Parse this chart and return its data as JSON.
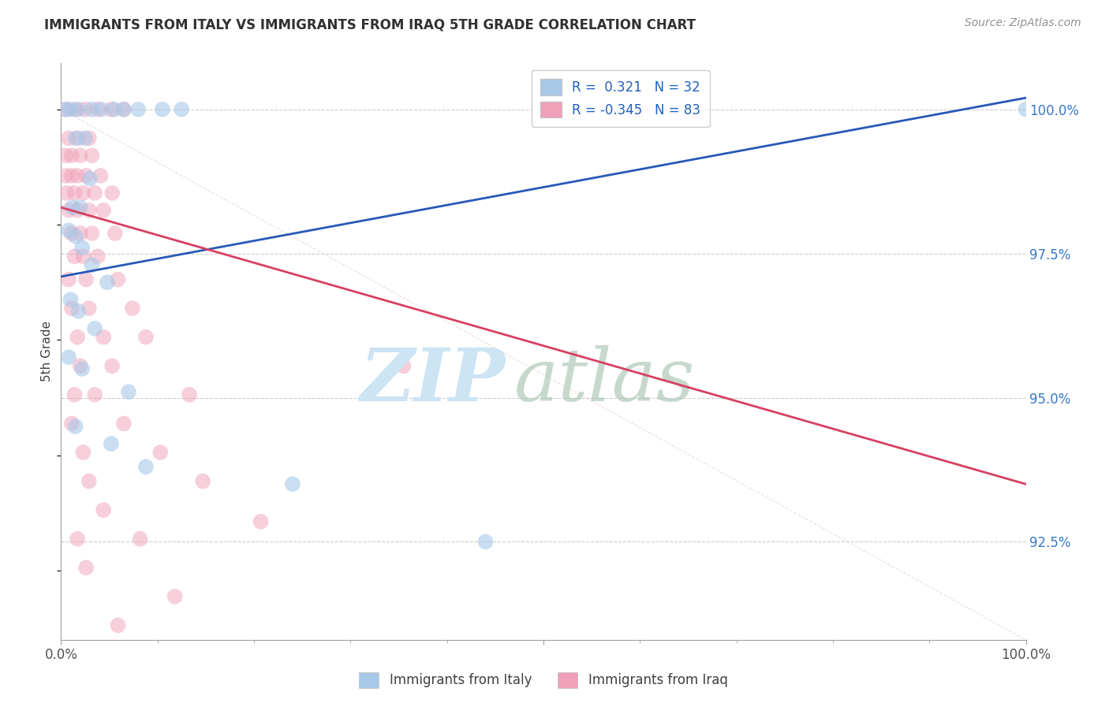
{
  "title": "IMMIGRANTS FROM ITALY VS IMMIGRANTS FROM IRAQ 5TH GRADE CORRELATION CHART",
  "source": "Source: ZipAtlas.com",
  "ylabel": "5th Grade",
  "yticks": [
    92.5,
    95.0,
    97.5,
    100.0
  ],
  "ytick_labels": [
    "92.5%",
    "95.0%",
    "97.5%",
    "100.0%"
  ],
  "ylim": [
    90.8,
    100.8
  ],
  "xlim": [
    0.0,
    100.0
  ],
  "italy_color": "#a8c8e8",
  "iraq_color": "#f0a0b8",
  "italy_line_color": "#2858b8",
  "iraq_line_color": "#d84060",
  "italy_trend_x": [
    0,
    100
  ],
  "italy_trend_y": [
    97.1,
    100.2
  ],
  "iraq_trend_x": [
    0,
    100
  ],
  "iraq_trend_y": [
    98.3,
    93.5
  ],
  "diag_line_x": [
    0,
    100
  ],
  "diag_line_y": [
    100.0,
    90.8
  ],
  "italy_points": [
    [
      0.5,
      100.0
    ],
    [
      1.0,
      100.0
    ],
    [
      1.8,
      100.0
    ],
    [
      3.2,
      100.0
    ],
    [
      4.2,
      100.0
    ],
    [
      5.5,
      100.0
    ],
    [
      6.5,
      100.0
    ],
    [
      8.0,
      100.0
    ],
    [
      10.5,
      100.0
    ],
    [
      12.5,
      100.0
    ],
    [
      1.5,
      99.5
    ],
    [
      2.5,
      99.5
    ],
    [
      3.0,
      98.8
    ],
    [
      1.2,
      98.3
    ],
    [
      2.0,
      98.3
    ],
    [
      0.8,
      97.9
    ],
    [
      1.5,
      97.8
    ],
    [
      2.2,
      97.6
    ],
    [
      3.2,
      97.3
    ],
    [
      4.8,
      97.0
    ],
    [
      1.0,
      96.7
    ],
    [
      1.8,
      96.5
    ],
    [
      3.5,
      96.2
    ],
    [
      0.8,
      95.7
    ],
    [
      2.2,
      95.5
    ],
    [
      7.0,
      95.1
    ],
    [
      1.5,
      94.5
    ],
    [
      5.2,
      94.2
    ],
    [
      8.8,
      93.8
    ],
    [
      24.0,
      93.5
    ],
    [
      44.0,
      92.5
    ],
    [
      100.0,
      100.0
    ]
  ],
  "iraq_points": [
    [
      0.5,
      100.0
    ],
    [
      1.5,
      100.0
    ],
    [
      2.5,
      100.0
    ],
    [
      3.8,
      100.0
    ],
    [
      5.2,
      100.0
    ],
    [
      6.5,
      100.0
    ],
    [
      0.8,
      99.5
    ],
    [
      1.8,
      99.5
    ],
    [
      2.9,
      99.5
    ],
    [
      0.5,
      99.2
    ],
    [
      1.1,
      99.2
    ],
    [
      2.0,
      99.2
    ],
    [
      3.2,
      99.2
    ],
    [
      0.5,
      98.85
    ],
    [
      1.1,
      98.85
    ],
    [
      1.7,
      98.85
    ],
    [
      2.6,
      98.85
    ],
    [
      4.1,
      98.85
    ],
    [
      0.6,
      98.55
    ],
    [
      1.4,
      98.55
    ],
    [
      2.3,
      98.55
    ],
    [
      3.5,
      98.55
    ],
    [
      5.3,
      98.55
    ],
    [
      0.8,
      98.25
    ],
    [
      1.7,
      98.25
    ],
    [
      2.9,
      98.25
    ],
    [
      4.4,
      98.25
    ],
    [
      1.1,
      97.85
    ],
    [
      2.0,
      97.85
    ],
    [
      3.2,
      97.85
    ],
    [
      5.6,
      97.85
    ],
    [
      1.4,
      97.45
    ],
    [
      2.3,
      97.45
    ],
    [
      3.8,
      97.45
    ],
    [
      0.8,
      97.05
    ],
    [
      2.6,
      97.05
    ],
    [
      5.9,
      97.05
    ],
    [
      1.1,
      96.55
    ],
    [
      2.9,
      96.55
    ],
    [
      7.4,
      96.55
    ],
    [
      1.7,
      96.05
    ],
    [
      4.4,
      96.05
    ],
    [
      8.8,
      96.05
    ],
    [
      2.0,
      95.55
    ],
    [
      5.3,
      95.55
    ],
    [
      1.4,
      95.05
    ],
    [
      3.5,
      95.05
    ],
    [
      13.3,
      95.05
    ],
    [
      1.1,
      94.55
    ],
    [
      6.5,
      94.55
    ],
    [
      2.3,
      94.05
    ],
    [
      10.3,
      94.05
    ],
    [
      2.9,
      93.55
    ],
    [
      14.7,
      93.55
    ],
    [
      4.4,
      93.05
    ],
    [
      20.7,
      92.85
    ],
    [
      1.7,
      92.55
    ],
    [
      8.2,
      92.55
    ],
    [
      2.6,
      92.05
    ],
    [
      11.8,
      91.55
    ],
    [
      5.9,
      91.05
    ],
    [
      35.5,
      95.55
    ]
  ]
}
